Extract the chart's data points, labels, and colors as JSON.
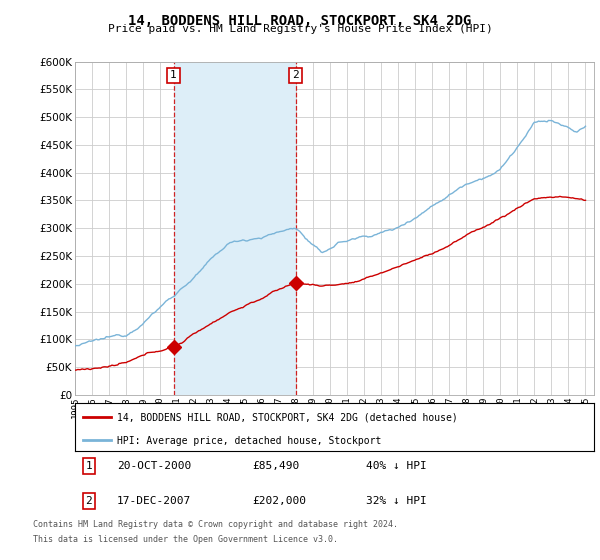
{
  "title": "14, BODDENS HILL ROAD, STOCKPORT, SK4 2DG",
  "subtitle": "Price paid vs. HM Land Registry's House Price Index (HPI)",
  "ylim": [
    0,
    600000
  ],
  "ytick_values": [
    0,
    50000,
    100000,
    150000,
    200000,
    250000,
    300000,
    350000,
    400000,
    450000,
    500000,
    550000,
    600000
  ],
  "hpi_color": "#7ab4d8",
  "hpi_fill_color": "#ddeef8",
  "price_color": "#cc0000",
  "vline_color": "#cc0000",
  "marker1_date": 2000.79,
  "marker2_date": 2007.96,
  "marker1_price": 85490,
  "marker2_price": 202000,
  "sale1_label": "1",
  "sale2_label": "2",
  "legend_line1": "14, BODDENS HILL ROAD, STOCKPORT, SK4 2DG (detached house)",
  "legend_line2": "HPI: Average price, detached house, Stockport",
  "background_color": "#ffffff",
  "grid_color": "#cccccc",
  "footnote1": "Contains HM Land Registry data © Crown copyright and database right 2024.",
  "footnote2": "This data is licensed under the Open Government Licence v3.0."
}
